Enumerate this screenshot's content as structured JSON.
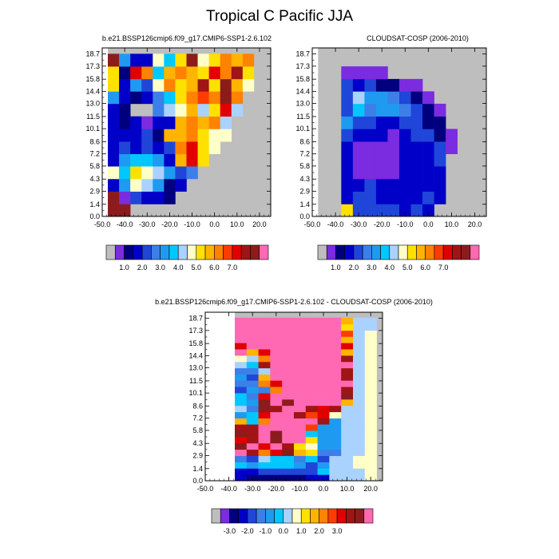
{
  "figure": {
    "title": "Tropical C Pacific JJA"
  },
  "palette": {
    "main": [
      "#bebebe",
      "#7b2be0",
      "#00007f",
      "#0000c8",
      "#1f46d8",
      "#3c7fe8",
      "#1e9bf0",
      "#00c8ff",
      "#aad2ff",
      "#ffffc8",
      "#ffe100",
      "#ffb400",
      "#ff8200",
      "#ff3c00",
      "#e10000",
      "#a01414",
      "#8c1c1c",
      "#ff69b4"
    ],
    "diff": [
      "#bebebe",
      "#7b2be0",
      "#00007f",
      "#0000c8",
      "#1f46d8",
      "#3c7fe8",
      "#1e9bf0",
      "#00c8ff",
      "#aad2ff",
      "#ffffc8",
      "#ffe100",
      "#ffb400",
      "#ff8200",
      "#ff3c00",
      "#e10000",
      "#a01414",
      "#8c1c1c",
      "#ff69b4"
    ],
    "missing": "#bebebe"
  },
  "chart_data": [
    {
      "type": "heatmap",
      "title": "b.e21.BSSP126cmip6.f09_g17.CMIP6-SSP1-2.6.102",
      "x": [
        -45,
        -40,
        -35,
        -30,
        -25,
        -20,
        -15,
        -10,
        -5,
        0,
        5,
        10,
        15,
        20
      ],
      "y": [
        0.7,
        2.15,
        3.6,
        5.05,
        6.5,
        7.9,
        9.35,
        10.8,
        12.25,
        13.7,
        15.1,
        16.55,
        18.0
      ],
      "xticks": [
        -50,
        -40,
        -30,
        -20,
        -10,
        0,
        10,
        20
      ],
      "xtick_labels": [
        "-50.0",
        "-40.0",
        "-30.0",
        "-20.0",
        "-10.0",
        "0.0",
        "10.0",
        "20.0"
      ],
      "yticks": [
        0,
        1.4,
        2.9,
        4.3,
        5.8,
        7.2,
        8.6,
        10.1,
        11.5,
        13.0,
        14.4,
        15.8,
        17.3,
        18.7
      ],
      "ytick_labels": [
        "0.0",
        "1.4",
        "2.9",
        "4.3",
        "5.8",
        "7.2",
        "8.6",
        "10.1",
        "11.5",
        "13.0",
        "14.4",
        "15.8",
        "17.3",
        "18.7"
      ],
      "xlim": [
        -50,
        25
      ],
      "ylim": [
        0,
        19.4
      ],
      "colorbar_labels": [
        "1.0",
        "2.0",
        "3.0",
        "4.0",
        "5.0",
        "6.0",
        "7.0"
      ],
      "values": [
        [
          7.5,
          7.5,
          null,
          null,
          null,
          null,
          null,
          null,
          null,
          null,
          null,
          null,
          null,
          null
        ],
        [
          7.5,
          0.3,
          1.5,
          1.2,
          1.0,
          0.5,
          null,
          null,
          null,
          null,
          null,
          null,
          null,
          null
        ],
        [
          1.0,
          2.5,
          3.8,
          3.5,
          2.8,
          0.8,
          1.2,
          null,
          null,
          null,
          null,
          null,
          null,
          null
        ],
        [
          4.2,
          3.0,
          4.5,
          4.0,
          3.5,
          2.5,
          1.5,
          2.0,
          null,
          null,
          null,
          null,
          null,
          null
        ],
        [
          1.2,
          2.8,
          3.0,
          3.2,
          2.5,
          1.2,
          5.0,
          6.5,
          4.5,
          null,
          null,
          null,
          null,
          null
        ],
        [
          1.2,
          1.5,
          1.2,
          1.5,
          1.0,
          1.8,
          5.5,
          6.2,
          4.5,
          4.2,
          null,
          null,
          null,
          null
        ],
        [
          1.0,
          1.2,
          1.0,
          1.5,
          0.8,
          4.8,
          5.0,
          5.2,
          4.5,
          4.0,
          4.2,
          null,
          null,
          null
        ],
        [
          1.0,
          0.5,
          1.0,
          0.3,
          1.0,
          1.2,
          5.0,
          5.5,
          4.8,
          5.2,
          3.5,
          null,
          null,
          null
        ],
        [
          1.0,
          0.5,
          null,
          null,
          2.0,
          3.5,
          4.0,
          5.0,
          3.5,
          4.5,
          6.5,
          3.5,
          null,
          null
        ],
        [
          2.5,
          1.2,
          0.5,
          1.0,
          2.0,
          3.2,
          4.5,
          5.5,
          6.0,
          5.5,
          7.5,
          5.5,
          null,
          null
        ],
        [
          4.5,
          1.0,
          2.5,
          1.5,
          4.2,
          5.5,
          4.5,
          4.8,
          7.0,
          4.5,
          7.2,
          5.0,
          4.2,
          null
        ],
        [
          4.5,
          0.8,
          6.5,
          5.5,
          3.0,
          5.0,
          5.5,
          5.0,
          4.5,
          6.2,
          5.5,
          6.8,
          4.5,
          null
        ],
        [
          7.5,
          2.5,
          1.2,
          1.0,
          4.0,
          3.2,
          4.5,
          7.5,
          4.0,
          4.5,
          5.5,
          5.0,
          5.5,
          null
        ]
      ]
    },
    {
      "type": "heatmap",
      "title": "CLOUDSAT-COSP (2006-2010)",
      "x": [
        -45,
        -40,
        -35,
        -30,
        -25,
        -20,
        -15,
        -10,
        -5,
        0,
        5,
        10,
        15,
        20
      ],
      "y": [
        0.7,
        2.15,
        3.6,
        5.05,
        6.5,
        7.9,
        9.35,
        10.8,
        12.25,
        13.7,
        15.1,
        16.55,
        18.0
      ],
      "xticks": [
        -50,
        -40,
        -30,
        -20,
        -10,
        0,
        10,
        20
      ],
      "xtick_labels": [
        "-50.0",
        "-40.0",
        "-30.0",
        "-20.0",
        "-10.0",
        "0.0",
        "10.0",
        "20.0"
      ],
      "yticks": [
        0,
        1.4,
        2.9,
        4.3,
        5.8,
        7.2,
        8.6,
        10.1,
        11.5,
        13.0,
        14.4,
        15.8,
        17.3,
        18.7
      ],
      "ytick_labels": [
        "0.0",
        "1.4",
        "2.9",
        "4.3",
        "5.8",
        "7.2",
        "8.6",
        "10.1",
        "11.5",
        "13.0",
        "14.4",
        "15.8",
        "17.3",
        "18.7"
      ],
      "xlim": [
        -50,
        25
      ],
      "ylim": [
        0,
        19.4
      ],
      "colorbar_labels": [
        "1.0",
        "2.0",
        "3.0",
        "4.0",
        "5.0",
        "6.0",
        "7.0"
      ],
      "values": [
        [
          null,
          null,
          4.5,
          1.5,
          1.5,
          1.8,
          1.8,
          1.2,
          1.5,
          1.0,
          null,
          null,
          null,
          null
        ],
        [
          null,
          null,
          1.0,
          1.5,
          1.5,
          1.0,
          1.0,
          1.2,
          1.0,
          1.5,
          1.0,
          null,
          null,
          null
        ],
        [
          null,
          null,
          1.0,
          1.0,
          1.5,
          1.0,
          1.0,
          1.2,
          1.0,
          1.0,
          1.0,
          null,
          null,
          null
        ],
        [
          null,
          null,
          1.0,
          0.3,
          0.3,
          0.3,
          0.3,
          1.0,
          1.0,
          1.0,
          1.0,
          null,
          null,
          null
        ],
        [
          null,
          null,
          1.0,
          0.3,
          0.3,
          0.3,
          0.3,
          1.0,
          1.0,
          1.0,
          1.5,
          null,
          null,
          null
        ],
        [
          null,
          null,
          1.0,
          0.3,
          0.3,
          0.3,
          0.3,
          1.0,
          1.0,
          1.2,
          1.5,
          0.3,
          null,
          null
        ],
        [
          null,
          null,
          1.5,
          1.0,
          1.0,
          1.0,
          0.3,
          1.2,
          1.5,
          1.5,
          0.5,
          0.3,
          null,
          null
        ],
        [
          null,
          null,
          2.5,
          1.5,
          1.5,
          1.0,
          1.2,
          1.5,
          1.5,
          0.5,
          0.5,
          null,
          null,
          null
        ],
        [
          null,
          null,
          1.5,
          3.2,
          2.2,
          2.5,
          2.5,
          2.0,
          1.5,
          0.5,
          0.3,
          null,
          null,
          null
        ],
        [
          null,
          null,
          1.5,
          3.5,
          2.5,
          2.5,
          2.0,
          1.5,
          0.5,
          0.3,
          null,
          null,
          null,
          null
        ],
        [
          null,
          null,
          1.5,
          1.0,
          1.5,
          0.5,
          0.5,
          0.3,
          0.3,
          null,
          null,
          null,
          null,
          null
        ],
        [
          null,
          null,
          0.3,
          0.3,
          0.3,
          0.3,
          null,
          null,
          null,
          null,
          null,
          null,
          null,
          null
        ],
        [
          null,
          null,
          null,
          null,
          null,
          null,
          null,
          null,
          null,
          null,
          null,
          null,
          null,
          null
        ]
      ]
    },
    {
      "type": "heatmap",
      "title": "b.e21.BSSP126cmip6.f09_g17.CMIP6-SSP1-2.6.102 - CLOUDSAT-COSP (2006-2010)",
      "x": [
        -35,
        -30,
        -25,
        -20,
        -15,
        -10,
        -5,
        0,
        5,
        10,
        15,
        20
      ],
      "y": [
        0.35,
        1.05,
        1.8,
        2.5,
        3.25,
        3.95,
        4.7,
        5.4,
        6.15,
        6.85,
        7.55,
        8.3,
        9.0,
        9.75,
        10.45,
        11.2,
        11.9,
        12.6,
        13.35,
        14.05,
        14.8,
        15.5,
        16.25,
        16.95,
        17.65,
        18.4
      ],
      "xticks": [
        -50,
        -40,
        -30,
        -20,
        -10,
        0,
        10,
        20
      ],
      "xtick_labels": [
        "-50.0",
        "-40.0",
        "-30.0",
        "-20.0",
        "-10.0",
        "0.0",
        "10.0",
        "20.0"
      ],
      "yticks": [
        0,
        1.4,
        2.9,
        4.3,
        5.8,
        7.2,
        8.6,
        10.1,
        11.5,
        13.0,
        14.4,
        15.8,
        17.3,
        18.7
      ],
      "ytick_labels": [
        "0.0",
        "1.4",
        "2.9",
        "4.3",
        "5.8",
        "7.2",
        "8.6",
        "10.1",
        "11.5",
        "13.0",
        "14.4",
        "15.8",
        "17.3",
        "18.7"
      ],
      "xlim": [
        -50,
        25
      ],
      "ylim": [
        0,
        19.4
      ],
      "colorbar_labels": [
        "-3.0",
        "-2.0",
        "-1.0",
        "0.0",
        "1.0",
        "2.0",
        "3.0"
      ],
      "values": [
        [
          -3.0,
          -3.2,
          -3.2,
          -3.2,
          -3.2,
          -3.2,
          -3.0,
          -3.0,
          -0.3,
          -0.3,
          -0.3,
          0.2
        ],
        [
          -3.0,
          -3.0,
          -2.5,
          -2.5,
          -2.5,
          -2.5,
          -2.5,
          -1.0,
          -0.3,
          -0.3,
          -0.3,
          0.2
        ],
        [
          -1.0,
          -1.5,
          -1.0,
          -1.0,
          -1.0,
          -1.5,
          -2.5,
          -1.5,
          -0.3,
          -0.3,
          0.2,
          0.2
        ],
        [
          -2.0,
          -2.5,
          -0.5,
          -1.0,
          -0.8,
          -2.0,
          -1.0,
          -2.5,
          -0.3,
          -0.3,
          0.2,
          0.2
        ],
        [
          4.0,
          3.0,
          1.5,
          2.5,
          3.5,
          1.0,
          0.3,
          -2.0,
          -2.0,
          -0.3,
          -0.3,
          0.2
        ],
        [
          3.5,
          4.0,
          2.5,
          4.0,
          3.0,
          0.5,
          0.2,
          -1.5,
          -1.5,
          -0.3,
          -0.3,
          0.2
        ],
        [
          2.5,
          3.0,
          4.0,
          3.5,
          4.0,
          4.0,
          0.5,
          -1.5,
          -1.5,
          -0.3,
          -0.3,
          0.2
        ],
        [
          3.5,
          3.0,
          4.0,
          3.5,
          4.0,
          4.0,
          -1.0,
          -1.5,
          -1.5,
          -0.3,
          -0.3,
          0.2
        ],
        [
          3.0,
          2.8,
          4.0,
          4.0,
          4.0,
          4.0,
          2.0,
          -1.5,
          -1.5,
          -0.3,
          -0.3,
          0.2
        ],
        [
          1.0,
          -1.0,
          1.5,
          4.0,
          4.0,
          4.0,
          4.0,
          2.8,
          -1.5,
          -0.3,
          -0.3,
          0.2
        ],
        [
          -1.5,
          -1.0,
          2.5,
          4.0,
          4.0,
          2.8,
          2.0,
          2.5,
          0.2,
          -0.3,
          -0.3,
          0.2
        ],
        [
          -0.5,
          -2.0,
          3.5,
          3.0,
          4.0,
          4.0,
          2.8,
          2.5,
          3.0,
          -0.3,
          -0.3,
          0.2
        ],
        [
          -1.0,
          -1.5,
          3.5,
          4.0,
          3.5,
          4.0,
          4.0,
          4.0,
          4.0,
          1.0,
          -0.3,
          0.2
        ],
        [
          -1.0,
          -2.0,
          2.5,
          4.0,
          4.0,
          4.0,
          4.0,
          4.0,
          4.0,
          3.5,
          -0.3,
          0.2
        ],
        [
          -2.5,
          -1.5,
          -2.0,
          1.5,
          4.0,
          4.0,
          4.0,
          4.0,
          4.0,
          3.0,
          -0.3,
          0.2
        ],
        [
          -2.0,
          -2.0,
          1.5,
          2.5,
          4.0,
          4.0,
          4.0,
          4.0,
          4.0,
          4.0,
          -0.3,
          0.2
        ],
        [
          -1.5,
          -2.5,
          1.0,
          4.0,
          4.0,
          4.0,
          4.0,
          4.0,
          4.0,
          3.0,
          -0.3,
          0.2
        ],
        [
          -2.0,
          -1.8,
          -0.5,
          4.0,
          4.0,
          4.0,
          4.0,
          4.0,
          4.0,
          2.8,
          -0.3,
          0.2
        ],
        [
          -0.5,
          -1.0,
          3.0,
          4.0,
          4.0,
          4.0,
          4.0,
          4.0,
          4.0,
          4.0,
          -0.3,
          0.2
        ],
        [
          0.2,
          -0.5,
          1.5,
          4.0,
          4.0,
          4.0,
          4.0,
          4.0,
          4.0,
          3.0,
          -0.3,
          0.2
        ],
        [
          4.0,
          1.0,
          2.5,
          4.0,
          4.0,
          4.0,
          4.0,
          4.0,
          4.0,
          1.0,
          -0.3,
          0.2
        ],
        [
          2.5,
          4.0,
          4.0,
          4.0,
          4.0,
          4.0,
          4.0,
          4.0,
          4.0,
          2.5,
          -0.3,
          0.2
        ],
        [
          4.0,
          4.0,
          4.0,
          4.0,
          4.0,
          4.0,
          4.0,
          4.0,
          4.0,
          1.0,
          -0.3,
          0.2
        ],
        [
          4.0,
          4.0,
          4.0,
          4.0,
          4.0,
          4.0,
          4.0,
          4.0,
          4.0,
          2.0,
          -0.3,
          0.2
        ],
        [
          4.0,
          4.0,
          4.0,
          4.0,
          4.0,
          4.0,
          4.0,
          4.0,
          4.0,
          0.5,
          -0.3,
          -0.3
        ],
        [
          4.0,
          4.0,
          4.0,
          4.0,
          4.0,
          4.0,
          4.0,
          4.0,
          4.0,
          1.0,
          -0.3,
          -0.3
        ]
      ]
    }
  ]
}
